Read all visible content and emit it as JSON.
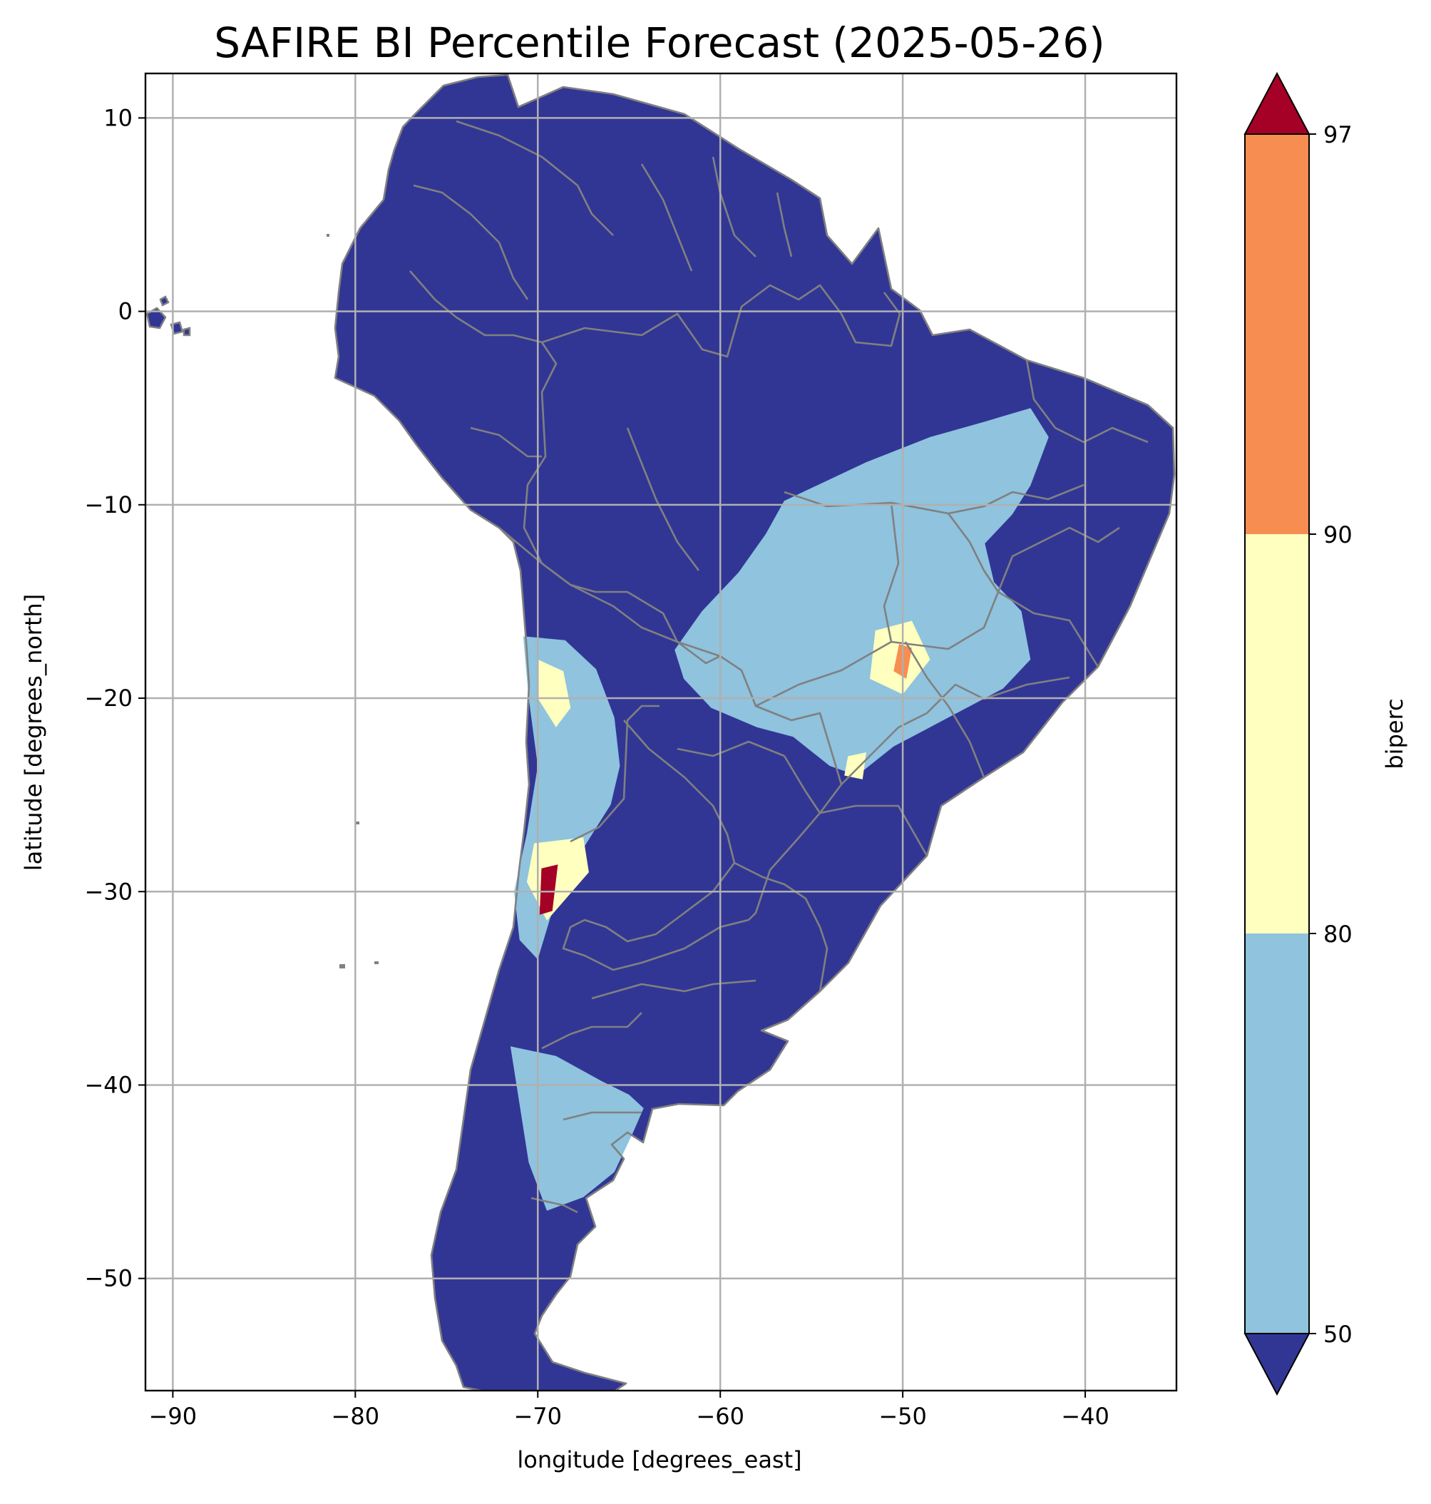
{
  "chart_data": {
    "type": "heatmap",
    "title": "SAFIRE BI Percentile Forecast (2025-05-26)",
    "xlabel": "longitude [degrees_east]",
    "ylabel": "latitude [degrees_north]",
    "xlim": [
      -91.5,
      -35
    ],
    "ylim": [
      -55.8,
      12.3
    ],
    "x_ticks": [
      -90,
      -80,
      -70,
      -60,
      -50,
      -40
    ],
    "x_tick_labels": [
      "−90",
      "−80",
      "−70",
      "−60",
      "−50",
      "−40"
    ],
    "y_ticks": [
      10,
      0,
      -10,
      -20,
      -30,
      -40,
      -50
    ],
    "y_tick_labels": [
      "10",
      "0",
      "−10",
      "−20",
      "−30",
      "−40",
      "−50"
    ],
    "grid": true,
    "colorbar": {
      "label": "biperc",
      "extend": "both",
      "boundaries": [
        50,
        80,
        90,
        97
      ],
      "tick_labels": [
        "50",
        "80",
        "90",
        "97"
      ],
      "colors": {
        "below_50": "#313695",
        "50_80": "#8fc3de",
        "80_90": "#ffffbf",
        "90_97": "#f88d52",
        "above_97": "#a50026"
      }
    },
    "land_color": "#313695",
    "border_color": "#808080",
    "regions": [
      {
        "class": "50-80",
        "name": "central-east-brazil",
        "polygon": [
          [
            -56.5,
            -9.8
          ],
          [
            -52.0,
            -7.8
          ],
          [
            -48.5,
            -6.5
          ],
          [
            -45.5,
            -5.7
          ],
          [
            -43.0,
            -5.0
          ],
          [
            -42.0,
            -6.5
          ],
          [
            -43.0,
            -9.0
          ],
          [
            -44.0,
            -10.5
          ],
          [
            -45.5,
            -12.0
          ],
          [
            -45.0,
            -14.0
          ],
          [
            -43.5,
            -15.5
          ],
          [
            -43.0,
            -18.0
          ],
          [
            -44.5,
            -19.5
          ],
          [
            -46.5,
            -20.5
          ],
          [
            -48.5,
            -21.5
          ],
          [
            -50.5,
            -22.5
          ],
          [
            -52.5,
            -24.0
          ],
          [
            -54.0,
            -23.5
          ],
          [
            -56.0,
            -22.0
          ],
          [
            -58.0,
            -21.5
          ],
          [
            -60.5,
            -20.5
          ],
          [
            -62.0,
            -19.0
          ],
          [
            -62.5,
            -17.5
          ],
          [
            -61.0,
            -15.5
          ],
          [
            -59.0,
            -13.5
          ],
          [
            -57.5,
            -11.5
          ]
        ]
      },
      {
        "class": "50-80",
        "name": "andes-altiplano",
        "polygon": [
          [
            -70.8,
            -16.8
          ],
          [
            -68.5,
            -17.0
          ],
          [
            -66.8,
            -18.5
          ],
          [
            -65.8,
            -21.0
          ],
          [
            -65.5,
            -23.5
          ],
          [
            -66.0,
            -25.5
          ],
          [
            -67.0,
            -27.0
          ],
          [
            -68.0,
            -28.5
          ],
          [
            -69.2,
            -31.0
          ],
          [
            -70.0,
            -33.5
          ],
          [
            -71.0,
            -32.5
          ],
          [
            -71.3,
            -30.0
          ],
          [
            -70.6,
            -27.0
          ],
          [
            -70.0,
            -23.5
          ],
          [
            -70.5,
            -20.0
          ]
        ]
      },
      {
        "class": "50-80",
        "name": "patagonia-east",
        "polygon": [
          [
            -71.5,
            -38.0
          ],
          [
            -69.0,
            -38.5
          ],
          [
            -66.5,
            -39.8
          ],
          [
            -65.0,
            -40.5
          ],
          [
            -64.2,
            -41.2
          ],
          [
            -64.8,
            -42.5
          ],
          [
            -65.8,
            -44.5
          ],
          [
            -67.5,
            -45.8
          ],
          [
            -69.5,
            -46.5
          ],
          [
            -70.5,
            -44.0
          ],
          [
            -71.0,
            -41.0
          ]
        ]
      },
      {
        "class": "80-90",
        "name": "altiplano-north",
        "polygon": [
          [
            -70.0,
            -18.0
          ],
          [
            -68.6,
            -18.6
          ],
          [
            -68.2,
            -20.5
          ],
          [
            -69.0,
            -21.5
          ],
          [
            -70.0,
            -20.0
          ]
        ]
      },
      {
        "class": "80-90",
        "name": "goias-minas",
        "polygon": [
          [
            -51.5,
            -16.5
          ],
          [
            -49.5,
            -16.0
          ],
          [
            -48.5,
            -18.0
          ],
          [
            -50.0,
            -19.8
          ],
          [
            -51.8,
            -19.0
          ]
        ]
      },
      {
        "class": "80-90",
        "name": "cuyo-andes",
        "polygon": [
          [
            -70.2,
            -27.5
          ],
          [
            -67.5,
            -27.2
          ],
          [
            -67.2,
            -29.0
          ],
          [
            -69.5,
            -31.5
          ],
          [
            -70.6,
            -29.5
          ]
        ]
      },
      {
        "class": "80-90",
        "name": "sao-paulo-south",
        "polygon": [
          [
            -53.0,
            -23.0
          ],
          [
            -52.0,
            -22.8
          ],
          [
            -52.2,
            -24.2
          ],
          [
            -53.2,
            -24.0
          ]
        ]
      },
      {
        "class": "90-97",
        "name": "minas-hotspot",
        "polygon": [
          [
            -50.2,
            -17.2
          ],
          [
            -49.5,
            -17.4
          ],
          [
            -49.8,
            -19.0
          ],
          [
            -50.5,
            -18.6
          ]
        ]
      },
      {
        "class": "above-97",
        "name": "san-juan-hotspot",
        "polygon": [
          [
            -69.8,
            -28.8
          ],
          [
            -68.9,
            -28.6
          ],
          [
            -69.2,
            -31.0
          ],
          [
            -69.9,
            -31.2
          ]
        ]
      }
    ]
  }
}
